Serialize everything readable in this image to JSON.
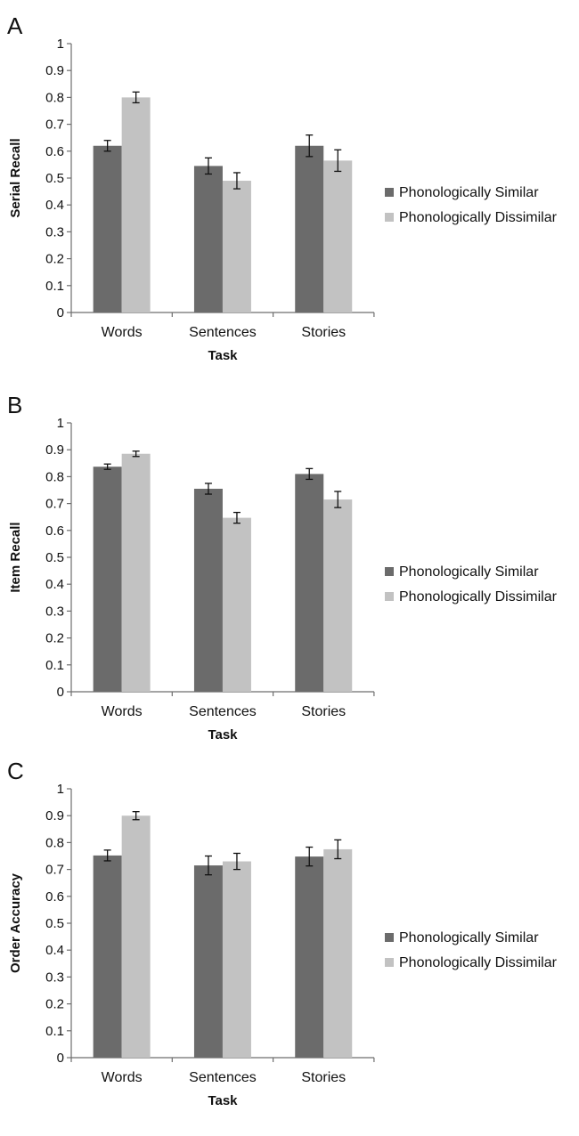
{
  "panel_letters": [
    "A",
    "B",
    "C"
  ],
  "colors": {
    "similar": "#6b6b6b",
    "dissimilar": "#c2c2c2",
    "axis": "#6e6e6e",
    "errorbar": "#111111"
  },
  "chart_data": [
    {
      "type": "bar",
      "title": "",
      "xlabel": "Task",
      "ylabel": "Serial Recall",
      "ylim": [
        0,
        1
      ],
      "yticks": [
        "0",
        "0.1",
        "0.2",
        "0.3",
        "0.4",
        "0.5",
        "0.6",
        "0.7",
        "0.8",
        "0.9",
        "1"
      ],
      "categories": [
        "Words",
        "Sentences",
        "Stories"
      ],
      "grid": false,
      "legend_position": "right",
      "series": [
        {
          "name": "Phonologically Similar",
          "values": [
            0.62,
            0.545,
            0.62
          ],
          "errors": [
            0.02,
            0.03,
            0.04
          ]
        },
        {
          "name": "Phonologically Dissimilar",
          "values": [
            0.8,
            0.49,
            0.565
          ],
          "errors": [
            0.02,
            0.03,
            0.04
          ]
        }
      ]
    },
    {
      "type": "bar",
      "title": "",
      "xlabel": "Task",
      "ylabel": "Item Recall",
      "ylim": [
        0,
        1
      ],
      "yticks": [
        "0",
        "0.1",
        "0.2",
        "0.3",
        "0.4",
        "0.5",
        "0.6",
        "0.7",
        "0.8",
        "0.9",
        "1"
      ],
      "categories": [
        "Words",
        "Sentences",
        "Stories"
      ],
      "grid": false,
      "legend_position": "right",
      "series": [
        {
          "name": "Phonologically Similar",
          "values": [
            0.837,
            0.755,
            0.81
          ],
          "errors": [
            0.01,
            0.02,
            0.02
          ]
        },
        {
          "name": "Phonologically Dissimilar",
          "values": [
            0.885,
            0.647,
            0.715
          ],
          "errors": [
            0.01,
            0.02,
            0.03
          ]
        }
      ]
    },
    {
      "type": "bar",
      "title": "",
      "xlabel": "Task",
      "ylabel": "Order Accuracy",
      "ylim": [
        0,
        1
      ],
      "yticks": [
        "0",
        "0.1",
        "0.2",
        "0.3",
        "0.4",
        "0.5",
        "0.6",
        "0.7",
        "0.8",
        "0.9",
        "1"
      ],
      "categories": [
        "Words",
        "Sentences",
        "Stories"
      ],
      "grid": false,
      "legend_position": "right",
      "series": [
        {
          "name": "Phonologically Similar",
          "values": [
            0.752,
            0.715,
            0.748
          ],
          "errors": [
            0.02,
            0.035,
            0.035
          ]
        },
        {
          "name": "Phonologically Dissimilar",
          "values": [
            0.9,
            0.73,
            0.775
          ],
          "errors": [
            0.015,
            0.03,
            0.035
          ]
        }
      ]
    }
  ]
}
